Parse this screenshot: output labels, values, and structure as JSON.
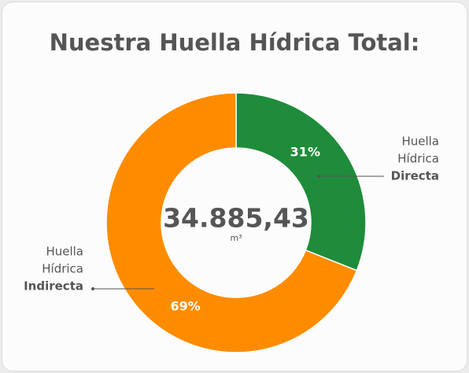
{
  "chart_data": {
    "type": "donut",
    "title": "Nuestra Huella Hídrica Total:",
    "center_value": "34.885,43",
    "center_unit": "m³",
    "category_prefix": [
      [
        "Huella",
        "Hídrica"
      ],
      [
        "Huella",
        "Hídrica"
      ]
    ],
    "categories": [
      "Directa",
      "Indirecta"
    ],
    "values": [
      31,
      69
    ],
    "value_labels": [
      "31%",
      "69%"
    ],
    "colors": [
      "#1e8c3a",
      "#ff8c00"
    ]
  }
}
